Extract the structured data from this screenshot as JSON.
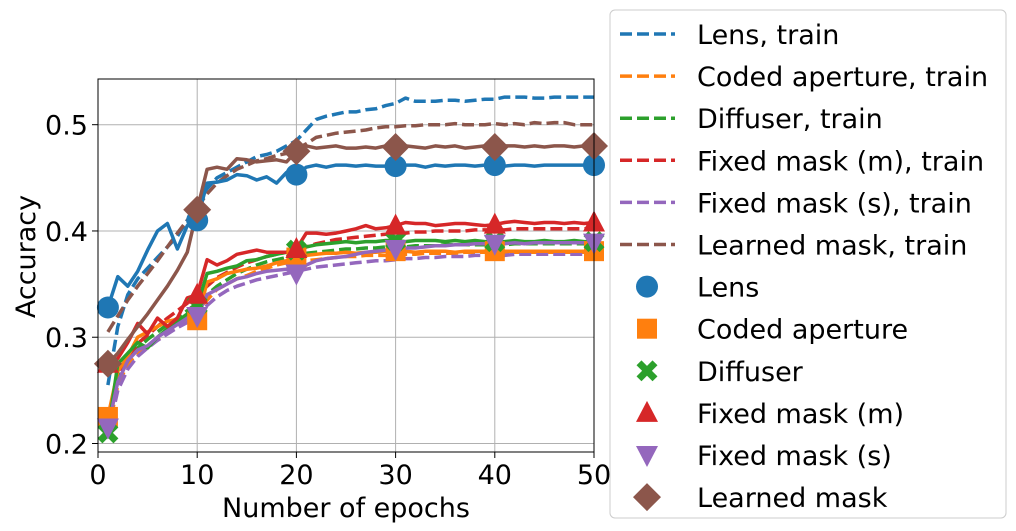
{
  "chart_data": {
    "type": "line",
    "xlabel": "Number of epochs",
    "ylabel": "Accuracy",
    "xlim": [
      0,
      50
    ],
    "ylim": [
      0.192,
      0.543
    ],
    "xticks": [
      0,
      10,
      20,
      30,
      40,
      50
    ],
    "yticks": [
      0.2,
      0.3,
      0.4,
      0.5
    ],
    "grid": true,
    "legend_position": "right, outside plot",
    "x": [
      1,
      2,
      3,
      4,
      5,
      6,
      7,
      8,
      9,
      10,
      11,
      12,
      13,
      14,
      15,
      16,
      17,
      18,
      19,
      20,
      21,
      22,
      23,
      24,
      25,
      26,
      27,
      28,
      29,
      30,
      31,
      32,
      33,
      34,
      35,
      36,
      37,
      38,
      39,
      40,
      41,
      42,
      43,
      44,
      45,
      46,
      47,
      48,
      49,
      50
    ],
    "train_series": [
      {
        "name": "Lens, train",
        "color": "#1f77b4",
        "values": [
          0.255,
          0.31,
          0.34,
          0.355,
          0.365,
          0.375,
          0.385,
          0.395,
          0.41,
          0.425,
          0.44,
          0.45,
          0.455,
          0.46,
          0.465,
          0.47,
          0.472,
          0.475,
          0.48,
          0.485,
          0.495,
          0.505,
          0.508,
          0.51,
          0.512,
          0.512,
          0.514,
          0.515,
          0.518,
          0.52,
          0.525,
          0.522,
          0.522,
          0.522,
          0.523,
          0.523,
          0.522,
          0.523,
          0.524,
          0.524,
          0.526,
          0.526,
          0.526,
          0.525,
          0.525,
          0.526,
          0.526,
          0.526,
          0.526,
          0.526
        ]
      },
      {
        "name": "Coded aperture, train",
        "color": "#ff7f0e",
        "values": [
          0.21,
          0.255,
          0.275,
          0.285,
          0.29,
          0.298,
          0.305,
          0.31,
          0.314,
          0.325,
          0.335,
          0.345,
          0.35,
          0.355,
          0.358,
          0.362,
          0.365,
          0.368,
          0.37,
          0.372,
          0.372,
          0.373,
          0.374,
          0.375,
          0.376,
          0.376,
          0.377,
          0.377,
          0.377,
          0.378,
          0.378,
          0.378,
          0.379,
          0.379,
          0.379,
          0.379,
          0.38,
          0.38,
          0.38,
          0.38,
          0.38,
          0.38,
          0.38,
          0.38,
          0.38,
          0.38,
          0.38,
          0.38,
          0.38,
          0.38
        ]
      },
      {
        "name": "Diffuser, train",
        "color": "#2ca02c",
        "values": [
          0.225,
          0.26,
          0.278,
          0.29,
          0.298,
          0.305,
          0.312,
          0.318,
          0.325,
          0.332,
          0.34,
          0.348,
          0.354,
          0.36,
          0.364,
          0.368,
          0.371,
          0.373,
          0.375,
          0.378,
          0.379,
          0.38,
          0.381,
          0.382,
          0.383,
          0.383,
          0.384,
          0.384,
          0.385,
          0.385,
          0.385,
          0.386,
          0.386,
          0.386,
          0.387,
          0.387,
          0.387,
          0.387,
          0.387,
          0.387,
          0.387,
          0.388,
          0.388,
          0.388,
          0.388,
          0.388,
          0.388,
          0.388,
          0.388,
          0.388
        ]
      },
      {
        "name": "Fixed mask (m), train",
        "color": "#d62728",
        "values": [
          0.222,
          0.262,
          0.282,
          0.294,
          0.302,
          0.31,
          0.318,
          0.325,
          0.332,
          0.34,
          0.348,
          0.356,
          0.361,
          0.366,
          0.37,
          0.373,
          0.376,
          0.378,
          0.38,
          0.382,
          0.385,
          0.388,
          0.39,
          0.392,
          0.393,
          0.394,
          0.395,
          0.396,
          0.397,
          0.398,
          0.398,
          0.399,
          0.399,
          0.4,
          0.4,
          0.4,
          0.4,
          0.401,
          0.401,
          0.401,
          0.401,
          0.402,
          0.402,
          0.402,
          0.402,
          0.402,
          0.402,
          0.402,
          0.402,
          0.402
        ]
      },
      {
        "name": "Fixed mask (s), train",
        "color": "#9467bd",
        "values": [
          0.208,
          0.25,
          0.27,
          0.282,
          0.29,
          0.297,
          0.303,
          0.309,
          0.314,
          0.32,
          0.33,
          0.338,
          0.344,
          0.348,
          0.351,
          0.354,
          0.356,
          0.358,
          0.36,
          0.362,
          0.364,
          0.366,
          0.367,
          0.368,
          0.369,
          0.37,
          0.371,
          0.372,
          0.372,
          0.373,
          0.374,
          0.374,
          0.375,
          0.375,
          0.376,
          0.376,
          0.376,
          0.377,
          0.377,
          0.377,
          0.377,
          0.378,
          0.378,
          0.378,
          0.378,
          0.378,
          0.378,
          0.378,
          0.378,
          0.378
        ]
      },
      {
        "name": "Learned mask, train",
        "color": "#8c564b",
        "values": [
          0.305,
          0.32,
          0.335,
          0.348,
          0.36,
          0.372,
          0.385,
          0.398,
          0.41,
          0.422,
          0.435,
          0.445,
          0.452,
          0.458,
          0.462,
          0.466,
          0.468,
          0.471,
          0.473,
          0.477,
          0.482,
          0.488,
          0.49,
          0.492,
          0.493,
          0.494,
          0.495,
          0.497,
          0.498,
          0.498,
          0.499,
          0.499,
          0.5,
          0.5,
          0.5,
          0.501,
          0.5,
          0.5,
          0.5,
          0.501,
          0.5,
          0.501,
          0.5,
          0.502,
          0.501,
          0.502,
          0.502,
          0.5,
          0.5,
          0.5
        ]
      }
    ],
    "test_series": [
      {
        "name": "Lens",
        "color": "#1f77b4",
        "marker": "circle",
        "values": [
          0.328,
          0.357,
          0.348,
          0.362,
          0.382,
          0.4,
          0.407,
          0.383,
          0.405,
          0.41,
          0.445,
          0.446,
          0.448,
          0.453,
          0.452,
          0.448,
          0.451,
          0.445,
          0.455,
          0.453,
          0.46,
          0.462,
          0.46,
          0.462,
          0.462,
          0.461,
          0.462,
          0.461,
          0.461,
          0.461,
          0.462,
          0.462,
          0.46,
          0.462,
          0.461,
          0.462,
          0.462,
          0.461,
          0.462,
          0.462,
          0.461,
          0.462,
          0.462,
          0.461,
          0.462,
          0.462,
          0.462,
          0.462,
          0.462,
          0.462
        ]
      },
      {
        "name": "Coded aperture",
        "color": "#ff7f0e",
        "marker": "square",
        "values": [
          0.225,
          0.268,
          0.282,
          0.3,
          0.305,
          0.31,
          0.315,
          0.317,
          0.319,
          0.316,
          0.352,
          0.355,
          0.36,
          0.362,
          0.364,
          0.365,
          0.367,
          0.37,
          0.372,
          0.375,
          0.377,
          0.378,
          0.379,
          0.379,
          0.38,
          0.379,
          0.38,
          0.38,
          0.381,
          0.381,
          0.381,
          0.38,
          0.381,
          0.381,
          0.381,
          0.38,
          0.381,
          0.381,
          0.381,
          0.381,
          0.381,
          0.381,
          0.381,
          0.381,
          0.381,
          0.381,
          0.381,
          0.381,
          0.381,
          0.381
        ]
      },
      {
        "name": "Diffuser",
        "color": "#2ca02c",
        "marker": "x",
        "values": [
          0.21,
          0.275,
          0.285,
          0.295,
          0.29,
          0.3,
          0.308,
          0.315,
          0.322,
          0.33,
          0.36,
          0.362,
          0.365,
          0.367,
          0.372,
          0.373,
          0.376,
          0.378,
          0.38,
          0.382,
          0.385,
          0.387,
          0.388,
          0.389,
          0.39,
          0.389,
          0.39,
          0.39,
          0.391,
          0.391,
          0.39,
          0.391,
          0.391,
          0.391,
          0.39,
          0.391,
          0.39,
          0.391,
          0.39,
          0.39,
          0.39,
          0.391,
          0.39,
          0.39,
          0.391,
          0.39,
          0.39,
          0.391,
          0.39,
          0.39
        ]
      },
      {
        "name": "Fixed mask (m)",
        "color": "#d62728",
        "marker": "triangle-up",
        "values": [
          0.275,
          0.28,
          0.295,
          0.313,
          0.303,
          0.318,
          0.31,
          0.318,
          0.337,
          0.34,
          0.373,
          0.368,
          0.372,
          0.378,
          0.38,
          0.382,
          0.38,
          0.38,
          0.38,
          0.383,
          0.398,
          0.398,
          0.397,
          0.398,
          0.4,
          0.402,
          0.405,
          0.402,
          0.403,
          0.405,
          0.408,
          0.407,
          0.407,
          0.405,
          0.406,
          0.407,
          0.407,
          0.406,
          0.405,
          0.406,
          0.408,
          0.409,
          0.408,
          0.407,
          0.408,
          0.408,
          0.407,
          0.408,
          0.407,
          0.408
        ]
      },
      {
        "name": "Fixed mask (s)",
        "color": "#9467bd",
        "marker": "triangle-down",
        "values": [
          0.215,
          0.258,
          0.278,
          0.288,
          0.292,
          0.3,
          0.306,
          0.312,
          0.318,
          0.32,
          0.34,
          0.345,
          0.35,
          0.355,
          0.357,
          0.36,
          0.362,
          0.363,
          0.364,
          0.36,
          0.368,
          0.372,
          0.374,
          0.375,
          0.376,
          0.378,
          0.38,
          0.381,
          0.382,
          0.383,
          0.384,
          0.384,
          0.385,
          0.386,
          0.386,
          0.387,
          0.387,
          0.388,
          0.388,
          0.388,
          0.388,
          0.389,
          0.388,
          0.389,
          0.389,
          0.389,
          0.389,
          0.389,
          0.389,
          0.389
        ]
      },
      {
        "name": "Learned mask",
        "color": "#8c564b",
        "marker": "diamond",
        "values": [
          0.275,
          0.285,
          0.298,
          0.31,
          0.322,
          0.335,
          0.348,
          0.363,
          0.38,
          0.42,
          0.458,
          0.46,
          0.458,
          0.468,
          0.467,
          0.465,
          0.466,
          0.467,
          0.465,
          0.475,
          0.48,
          0.478,
          0.479,
          0.48,
          0.478,
          0.478,
          0.479,
          0.478,
          0.48,
          0.479,
          0.48,
          0.479,
          0.478,
          0.48,
          0.479,
          0.48,
          0.478,
          0.479,
          0.48,
          0.479,
          0.48,
          0.48,
          0.479,
          0.48,
          0.479,
          0.48,
          0.48,
          0.479,
          0.48,
          0.48
        ]
      }
    ],
    "marker_x": [
      1,
      10,
      20,
      30,
      40,
      50
    ]
  }
}
